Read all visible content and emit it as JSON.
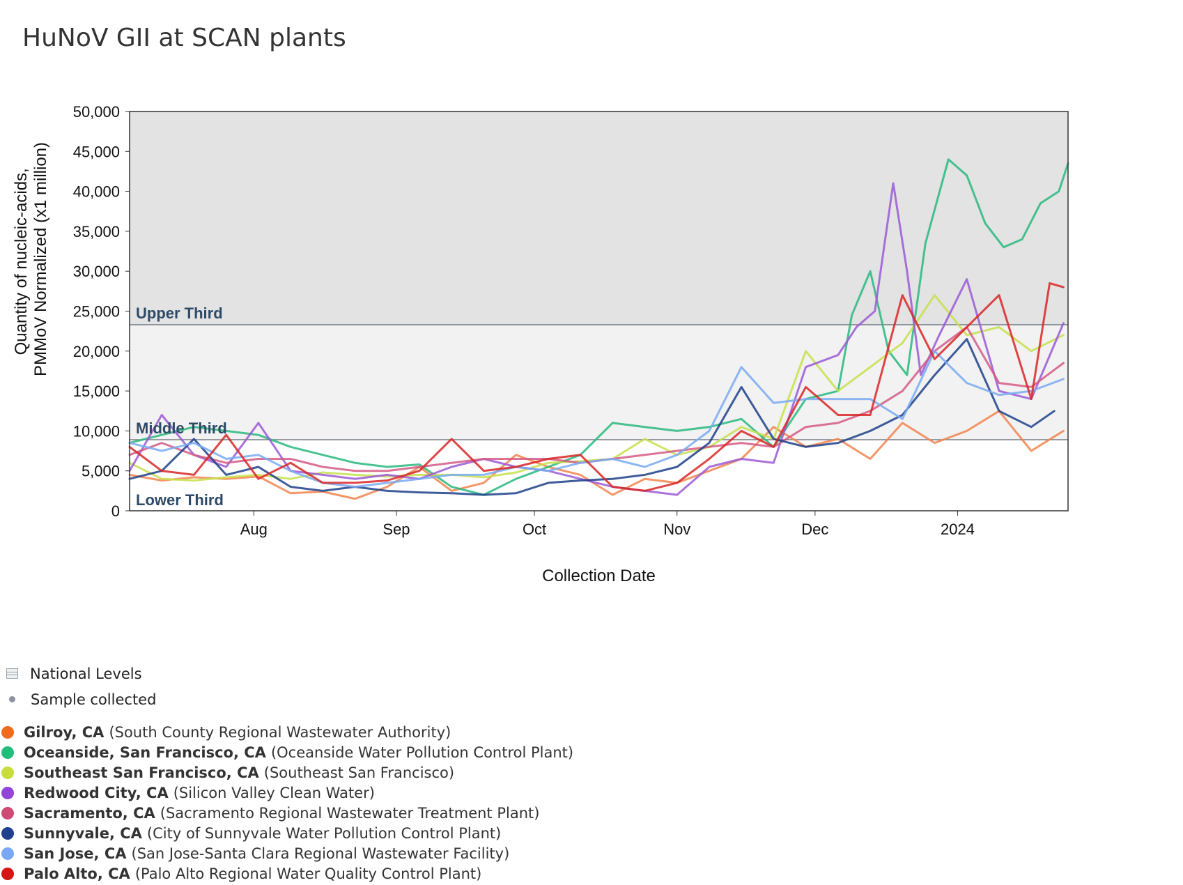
{
  "title": "HuNoV GII at SCAN plants",
  "chart_data": {
    "type": "line",
    "title": "HuNoV GII at SCAN plants",
    "xlabel": "Collection Date",
    "ylabel": "Quantity of nucleic-acids, PMMoV Normalized (x1 million)",
    "ylabel_lines": [
      "Quantity of nucleic-acids,",
      "PMMoV Normalized (x1 million)"
    ],
    "ylim": [
      0,
      50000
    ],
    "xlim": [
      "2023-07-05",
      "2024-01-25"
    ],
    "x_ticks": [
      {
        "date": "2023-08-01",
        "label": "Aug"
      },
      {
        "date": "2023-09-01",
        "label": "Sep"
      },
      {
        "date": "2023-10-01",
        "label": "Oct"
      },
      {
        "date": "2023-11-01",
        "label": "Nov"
      },
      {
        "date": "2023-12-01",
        "label": "Dec"
      },
      {
        "date": "2024-01-01",
        "label": "2024"
      }
    ],
    "y_ticks": [
      0,
      5000,
      10000,
      15000,
      20000,
      25000,
      30000,
      35000,
      40000,
      45000,
      50000
    ],
    "y_tick_labels": [
      "0",
      "5,000",
      "10,000",
      "15,000",
      "20,000",
      "25,000",
      "30,000",
      "35,000",
      "40,000",
      "45,000",
      "50,000"
    ],
    "bands": [
      {
        "label": "Lower Third",
        "from": 0,
        "to": 8900,
        "color": "#ffffff"
      },
      {
        "label": "Middle Third",
        "from": 8900,
        "to": 23300,
        "color": "#f2f2f2"
      },
      {
        "label": "Upper Third",
        "from": 23300,
        "to": 50000,
        "color": "#e3e3e3"
      }
    ],
    "grid": false,
    "legend_position": "bottom-left",
    "series": [
      {
        "name": "Gilroy, CA",
        "color": "#f2844e",
        "x": [
          "2023-07-05",
          "2023-07-12",
          "2023-07-19",
          "2023-07-26",
          "2023-08-02",
          "2023-08-09",
          "2023-08-16",
          "2023-08-23",
          "2023-08-30",
          "2023-09-06",
          "2023-09-13",
          "2023-09-20",
          "2023-09-27",
          "2023-10-04",
          "2023-10-11",
          "2023-10-18",
          "2023-10-25",
          "2023-11-01",
          "2023-11-08",
          "2023-11-15",
          "2023-11-22",
          "2023-11-29",
          "2023-12-06",
          "2023-12-13",
          "2023-12-20",
          "2023-12-27",
          "2024-01-03",
          "2024-01-10",
          "2024-01-17",
          "2024-01-24"
        ],
        "y": [
          4500,
          3800,
          4200,
          4000,
          4300,
          2200,
          2400,
          1500,
          3000,
          5500,
          2500,
          3500,
          7000,
          5500,
          4500,
          2000,
          4000,
          3500,
          5000,
          6500,
          10500,
          8000,
          9000,
          6500,
          11000,
          8500,
          10000,
          12500,
          7500,
          10000
        ]
      },
      {
        "name": "Oceanside, San Francisco, CA",
        "color": "#29b97e",
        "x": [
          "2023-07-05",
          "2023-07-12",
          "2023-07-19",
          "2023-07-26",
          "2023-08-02",
          "2023-08-09",
          "2023-08-16",
          "2023-08-23",
          "2023-08-30",
          "2023-09-06",
          "2023-09-13",
          "2023-09-20",
          "2023-09-27",
          "2023-10-04",
          "2023-10-11",
          "2023-10-18",
          "2023-10-25",
          "2023-11-01",
          "2023-11-08",
          "2023-11-15",
          "2023-11-22",
          "2023-11-29",
          "2023-12-06",
          "2023-12-09",
          "2023-12-13",
          "2023-12-17",
          "2023-12-21",
          "2023-12-25",
          "2023-12-30",
          "2024-01-03",
          "2024-01-07",
          "2024-01-11",
          "2024-01-15",
          "2024-01-19",
          "2024-01-23",
          "2024-01-25"
        ],
        "y": [
          8500,
          9500,
          10500,
          10000,
          9500,
          8000,
          7000,
          6000,
          5500,
          5800,
          3000,
          2000,
          4000,
          5500,
          7000,
          11000,
          10500,
          10000,
          10500,
          11500,
          8000,
          14000,
          15000,
          24500,
          30000,
          20000,
          17000,
          33500,
          44000,
          42000,
          36000,
          33000,
          34000,
          38500,
          40000,
          43500
        ]
      },
      {
        "name": "Southeast San Francisco, CA",
        "color": "#c5e04e",
        "x": [
          "2023-07-05",
          "2023-07-12",
          "2023-07-19",
          "2023-07-26",
          "2023-08-02",
          "2023-08-09",
          "2023-08-16",
          "2023-08-23",
          "2023-08-30",
          "2023-09-06",
          "2023-09-13",
          "2023-09-20",
          "2023-09-27",
          "2023-10-04",
          "2023-10-11",
          "2023-10-18",
          "2023-10-25",
          "2023-11-01",
          "2023-11-08",
          "2023-11-15",
          "2023-11-22",
          "2023-11-29",
          "2023-12-06",
          "2023-12-13",
          "2023-12-20",
          "2023-12-27",
          "2024-01-03",
          "2024-01-10",
          "2024-01-17",
          "2024-01-24"
        ],
        "y": [
          6000,
          4000,
          3800,
          4200,
          4500,
          4000,
          4800,
          4500,
          4300,
          4500,
          4500,
          4200,
          4800,
          6000,
          6200,
          6500,
          9000,
          7000,
          8000,
          10500,
          9000,
          20000,
          15000,
          18000,
          21000,
          27000,
          22000,
          23000,
          20000,
          22000
        ]
      },
      {
        "name": "Redwood City, CA",
        "color": "#9b59d6",
        "x": [
          "2023-07-05",
          "2023-07-12",
          "2023-07-19",
          "2023-07-26",
          "2023-08-02",
          "2023-08-09",
          "2023-08-16",
          "2023-08-23",
          "2023-08-30",
          "2023-09-06",
          "2023-09-13",
          "2023-09-20",
          "2023-09-27",
          "2023-10-04",
          "2023-10-11",
          "2023-10-18",
          "2023-10-25",
          "2023-11-01",
          "2023-11-08",
          "2023-11-15",
          "2023-11-22",
          "2023-11-29",
          "2023-12-06",
          "2023-12-10",
          "2023-12-14",
          "2023-12-18",
          "2023-12-21",
          "2023-12-24",
          "2023-12-28",
          "2024-01-03",
          "2024-01-10",
          "2024-01-17",
          "2024-01-24"
        ],
        "y": [
          5000,
          12000,
          7000,
          5500,
          11000,
          5000,
          4500,
          4000,
          4500,
          4000,
          5500,
          6500,
          5500,
          5000,
          4000,
          3000,
          2500,
          2000,
          5500,
          6500,
          6000,
          18000,
          19500,
          23000,
          25000,
          41000,
          30000,
          17000,
          22000,
          29000,
          15000,
          14000,
          23500
        ]
      },
      {
        "name": "Sacramento, CA",
        "color": "#d45a85",
        "x": [
          "2023-07-05",
          "2023-07-12",
          "2023-07-19",
          "2023-07-26",
          "2023-08-02",
          "2023-08-09",
          "2023-08-16",
          "2023-08-23",
          "2023-08-30",
          "2023-09-06",
          "2023-09-13",
          "2023-09-20",
          "2023-09-27",
          "2023-10-04",
          "2023-10-11",
          "2023-10-18",
          "2023-10-25",
          "2023-11-01",
          "2023-11-08",
          "2023-11-15",
          "2023-11-22",
          "2023-11-29",
          "2023-12-06",
          "2023-12-13",
          "2023-12-20",
          "2023-12-27",
          "2024-01-03",
          "2024-01-10",
          "2024-01-17",
          "2024-01-24"
        ],
        "y": [
          7000,
          8500,
          7000,
          6000,
          6500,
          6500,
          5500,
          5000,
          5000,
          5500,
          6000,
          6500,
          6500,
          6500,
          6000,
          6500,
          7000,
          7500,
          8000,
          8500,
          8000,
          10500,
          11000,
          12500,
          15000,
          20000,
          23000,
          16000,
          15500,
          18500
        ]
      },
      {
        "name": "Sunnyvale, CA",
        "color": "#1d3f8a",
        "x": [
          "2023-07-05",
          "2023-07-12",
          "2023-07-19",
          "2023-07-26",
          "2023-08-02",
          "2023-08-09",
          "2023-08-16",
          "2023-08-23",
          "2023-08-30",
          "2023-09-06",
          "2023-09-13",
          "2023-09-20",
          "2023-09-27",
          "2023-10-04",
          "2023-10-11",
          "2023-10-18",
          "2023-10-25",
          "2023-11-01",
          "2023-11-08",
          "2023-11-15",
          "2023-11-22",
          "2023-11-29",
          "2023-12-06",
          "2023-12-13",
          "2023-12-20",
          "2023-12-27",
          "2024-01-03",
          "2024-01-10",
          "2024-01-17",
          "2024-01-22"
        ],
        "y": [
          4000,
          5000,
          9000,
          4500,
          5500,
          3000,
          2500,
          3000,
          2500,
          2300,
          2200,
          2000,
          2200,
          3500,
          3800,
          4000,
          4500,
          5500,
          8500,
          15500,
          9000,
          8000,
          8500,
          10000,
          12000,
          17000,
          21500,
          12500,
          10500,
          12500
        ]
      },
      {
        "name": "San Jose, CA",
        "color": "#79aaf2",
        "x": [
          "2023-07-05",
          "2023-07-12",
          "2023-07-19",
          "2023-07-26",
          "2023-08-02",
          "2023-08-09",
          "2023-08-16",
          "2023-08-23",
          "2023-08-30",
          "2023-09-06",
          "2023-09-13",
          "2023-09-20",
          "2023-09-27",
          "2023-10-04",
          "2023-10-11",
          "2023-10-18",
          "2023-10-25",
          "2023-11-01",
          "2023-11-08",
          "2023-11-15",
          "2023-11-22",
          "2023-11-29",
          "2023-12-06",
          "2023-12-13",
          "2023-12-20",
          "2023-12-27",
          "2024-01-03",
          "2024-01-10",
          "2024-01-17",
          "2024-01-24"
        ],
        "y": [
          8500,
          7500,
          8500,
          6500,
          7000,
          5000,
          3500,
          3000,
          3500,
          4000,
          4500,
          4500,
          5500,
          5000,
          6000,
          6500,
          5500,
          7000,
          10000,
          18000,
          13500,
          14000,
          14000,
          14000,
          11500,
          20000,
          16000,
          14500,
          15000,
          16500
        ]
      },
      {
        "name": "Palo Alto, CA",
        "color": "#d92626",
        "x": [
          "2023-07-05",
          "2023-07-12",
          "2023-07-19",
          "2023-07-26",
          "2023-08-02",
          "2023-08-09",
          "2023-08-16",
          "2023-08-23",
          "2023-08-30",
          "2023-09-06",
          "2023-09-13",
          "2023-09-20",
          "2023-09-27",
          "2023-10-04",
          "2023-10-11",
          "2023-10-18",
          "2023-10-25",
          "2023-11-01",
          "2023-11-08",
          "2023-11-15",
          "2023-11-22",
          "2023-11-29",
          "2023-12-06",
          "2023-12-13",
          "2023-12-20",
          "2023-12-27",
          "2024-01-03",
          "2024-01-10",
          "2024-01-17",
          "2024-01-21",
          "2024-01-24"
        ],
        "y": [
          8000,
          5000,
          4500,
          9500,
          4000,
          6000,
          3500,
          3500,
          3800,
          5000,
          9000,
          5000,
          5500,
          6500,
          7000,
          3000,
          2500,
          3500,
          6500,
          10000,
          8000,
          15500,
          12000,
          12000,
          27000,
          19000,
          23000,
          27000,
          14000,
          28500,
          28000
        ]
      }
    ]
  },
  "legend": {
    "meta": [
      {
        "icon": "grid-icon",
        "label": "National Levels"
      },
      {
        "icon": "dot-icon",
        "label": "Sample collected"
      }
    ],
    "sites": [
      {
        "city": "Gilroy, CA",
        "plant": "(South County Regional Wastewater Authority)",
        "color": "#f26a1b"
      },
      {
        "city": "Oceanside, San Francisco, CA",
        "plant": "(Oceanside Water Pollution Control Plant)",
        "color": "#1fbe7a"
      },
      {
        "city": "Southeast San Francisco, CA",
        "plant": "(Southeast San Francisco)",
        "color": "#c8dc3c"
      },
      {
        "city": "Redwood City, CA",
        "plant": "(Silicon Valley Clean Water)",
        "color": "#9344d9"
      },
      {
        "city": "Sacramento, CA",
        "plant": "(Sacramento Regional Wastewater Treatment Plant)",
        "color": "#cf4a74"
      },
      {
        "city": "Sunnyvale, CA",
        "plant": "(City of Sunnyvale Water Pollution Control Plant)",
        "color": "#1f3f8f"
      },
      {
        "city": "San Jose, CA",
        "plant": "(San Jose-Santa Clara Regional Wastewater Facility)",
        "color": "#7aa8f5"
      },
      {
        "city": "Palo Alto, CA",
        "plant": "(Palo Alto Regional Water Quality Control Plant)",
        "color": "#d51414"
      }
    ]
  }
}
